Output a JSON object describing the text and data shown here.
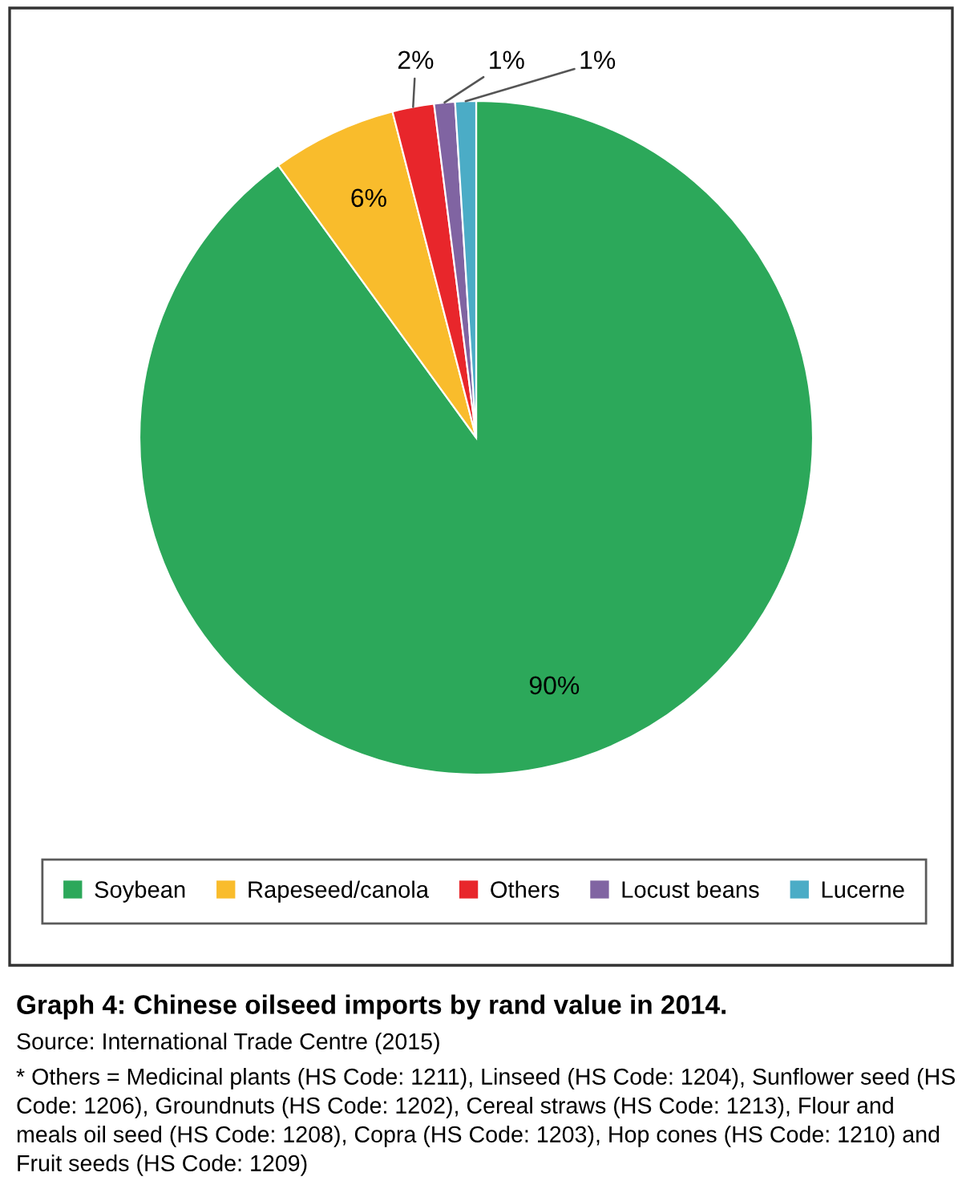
{
  "chart_data": {
    "type": "pie",
    "title": "Graph 4: Chinese oilseed imports by rand value in 2014.",
    "categories": [
      "Soybean",
      "Rapeseed/canola",
      "Others",
      "Locust beans",
      "Lucerne"
    ],
    "values": [
      90,
      6,
      2,
      1,
      1
    ],
    "colors": [
      "#2ca85a",
      "#f9bc2c",
      "#e8262b",
      "#8064a2",
      "#4bacc6"
    ],
    "value_labels": [
      "90%",
      "6%",
      "2%",
      "1%",
      "1%"
    ],
    "legend": "bottom",
    "annotations": [
      "Source: International Trade Centre (2015)",
      "* Others = Medicinal plants (HS Code: 1211), Linseed (HS Code: 1204), Sunflower seed (HS Code: 1206), Groundnuts (HS Code: 1202), Cereal straws (HS Code: 1213), Flour and meals oil seed (HS Code: 1208), Copra (HS Code: 1203), Hop cones (HS Code: 1210) and Fruit seeds (HS Code: 1209)"
    ]
  }
}
